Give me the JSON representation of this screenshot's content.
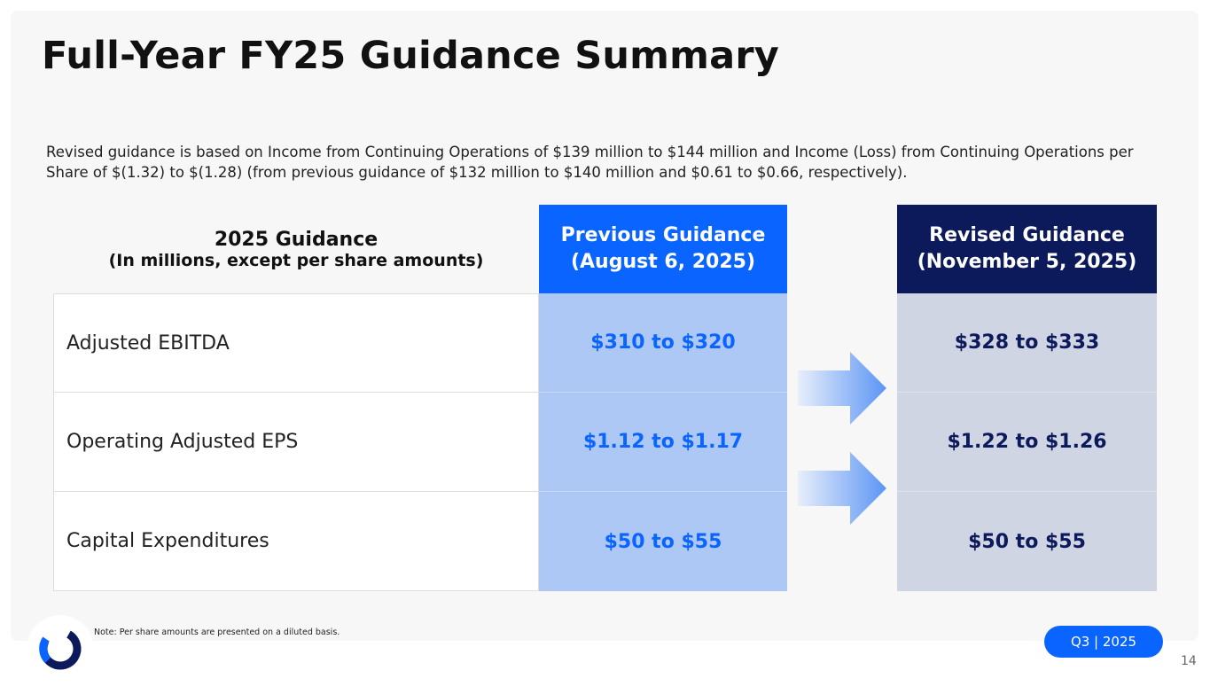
{
  "title": "Full-Year FY25 Guidance Summary",
  "description": "Revised guidance is based on Income from Continuing Operations of $139 million to $144 million and Income (Loss) from Continuing Operations per Share of $(1.32) to $(1.28) (from previous guidance of $132 million to $140 million and $0.61 to $0.66, respectively).",
  "table": {
    "header_left_line1": "2025  Guidance",
    "header_left_line2": "(In millions, except per share amounts)",
    "previous_header_line1": "Previous Guidance",
    "previous_header_line2": "(August 6, 2025)",
    "revised_header_line1": "Revised Guidance",
    "revised_header_line2": "(November 5, 2025)",
    "rows": [
      {
        "label": "Adjusted EBITDA",
        "previous": "$310 to $320",
        "revised": "$328 to $333"
      },
      {
        "label": "Operating Adjusted EPS",
        "previous": "$1.12 to $1.17",
        "revised": "$1.22 to $1.26"
      },
      {
        "label": "Capital Expenditures",
        "previous": "$50 to $55",
        "revised": "$50 to $55"
      }
    ]
  },
  "note": "Note: Per share amounts are presented on a diluted basis.",
  "badge": "Q3 | 2025",
  "page_number": "14",
  "colors": {
    "accent": "#0a64ff",
    "navy": "#0c1a5c",
    "prev_body": "#adc8f5",
    "rev_body": "#d0d5e3"
  }
}
